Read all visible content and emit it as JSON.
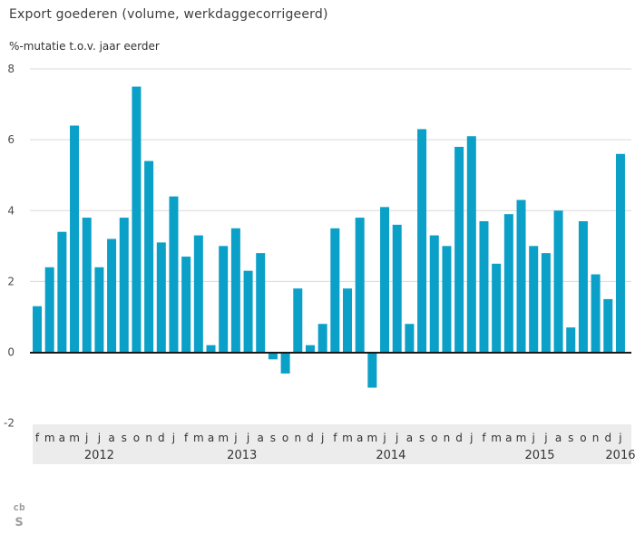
{
  "header": {
    "title": "Export goederen (volume, werkdaggecorrigeerd)",
    "subtitle": "%-mutatie t.o.v. jaar eerder"
  },
  "chart_data": {
    "type": "bar",
    "title": "Export goederen (volume, werkdaggecorrigeerd)",
    "ylabel": "%-mutatie t.o.v. jaar eerder",
    "xlabel": "",
    "ylim": [
      -2,
      8
    ],
    "yticks": [
      8,
      6,
      4,
      2,
      0,
      -2
    ],
    "grid_values": [
      8,
      6,
      4,
      2
    ],
    "grid": "on",
    "legend": "none",
    "bar_color": "#0aa0c8",
    "zero_line_color": "#1a1a1a",
    "axis_band_color": "#ececec",
    "months": [
      "f",
      "m",
      "a",
      "m",
      "j",
      "j",
      "a",
      "s",
      "o",
      "n",
      "d",
      "j",
      "f",
      "m",
      "a",
      "m",
      "j",
      "j",
      "a",
      "s",
      "o",
      "n",
      "d",
      "j",
      "f",
      "m",
      "a",
      "m",
      "j",
      "j",
      "a",
      "s",
      "o",
      "n",
      "d",
      "j",
      "f",
      "m",
      "a",
      "m",
      "j",
      "j",
      "a",
      "s",
      "o",
      "n",
      "d",
      "j"
    ],
    "values": [
      1.3,
      2.4,
      3.4,
      6.4,
      3.8,
      2.4,
      3.2,
      3.8,
      7.5,
      5.4,
      3.1,
      4.4,
      2.7,
      3.3,
      0.2,
      3.0,
      3.5,
      2.3,
      2.8,
      -0.2,
      -0.6,
      1.8,
      0.2,
      0.8,
      3.5,
      1.8,
      3.8,
      -1.0,
      4.1,
      3.6,
      0.8,
      6.3,
      3.3,
      3.0,
      5.8,
      6.1,
      3.7,
      2.5,
      3.9,
      4.3,
      3.0,
      2.8,
      4.0,
      0.7,
      3.7,
      2.2,
      1.5,
      5.6
    ],
    "years": [
      {
        "label": "2012",
        "from": 0,
        "to": 10
      },
      {
        "label": "2013",
        "from": 11,
        "to": 22
      },
      {
        "label": "2014",
        "from": 23,
        "to": 34
      },
      {
        "label": "2015",
        "from": 35,
        "to": 46
      },
      {
        "label": "2016",
        "from": 47,
        "to": 47
      }
    ]
  },
  "footer": {
    "logo_top": "cb",
    "logo_bottom": "s"
  }
}
